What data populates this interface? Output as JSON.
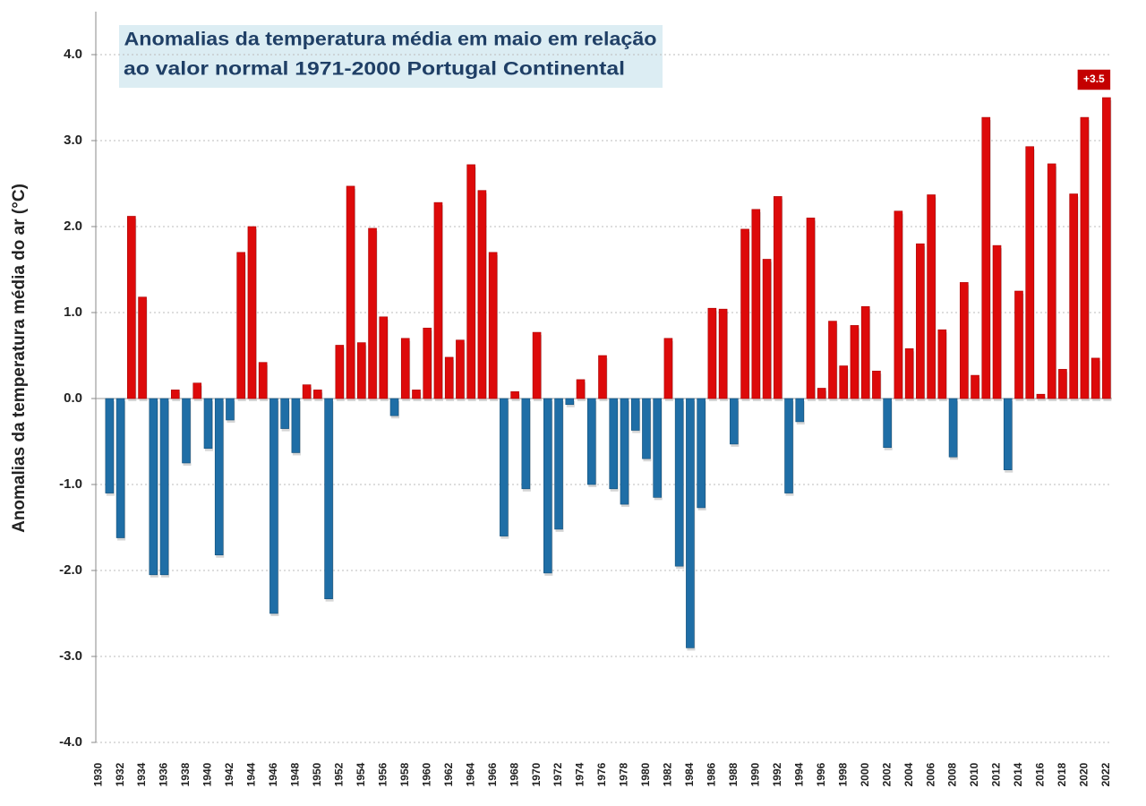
{
  "chart_data": {
    "type": "bar",
    "title": [
      "Anomalias da temperatura média em maio em relação",
      "ao valor normal 1971-2000 Portugal Continental"
    ],
    "y_label": "Anomalias da temperatura média do ar (°C)",
    "categories": [
      "1930",
      null,
      "1932",
      null,
      "1934",
      null,
      "1936",
      null,
      "1938",
      null,
      "1940",
      null,
      "1942",
      null,
      "1944",
      null,
      "1946",
      null,
      "1948",
      null,
      "1950",
      null,
      "1952",
      null,
      "1954",
      null,
      "1956",
      null,
      "1958",
      null,
      "1960",
      null,
      "1962",
      null,
      "1964",
      null,
      "1966",
      null,
      "1968",
      null,
      "1970",
      null,
      "1972",
      null,
      "1974",
      null,
      "1976",
      null,
      "1978",
      null,
      "1980",
      null,
      "1982",
      null,
      "1984",
      null,
      "1986",
      null,
      "1988",
      null,
      "1990",
      null,
      "1992",
      null,
      "1994",
      null,
      "1996",
      null,
      "1998",
      null,
      "2000",
      null,
      "2002",
      null,
      "2004",
      null,
      "2006",
      null,
      "2008",
      null,
      "2010",
      null,
      "2012",
      null,
      "2014",
      null,
      "2016",
      null,
      "2018",
      null,
      "2020",
      null,
      "2022"
    ],
    "values": [
      null,
      -1.1,
      -1.62,
      2.12,
      1.18,
      -2.05,
      -2.05,
      0.1,
      -0.75,
      0.18,
      -0.58,
      -1.82,
      -0.25,
      1.7,
      2.0,
      0.42,
      -2.5,
      -0.35,
      -0.63,
      0.16,
      0.1,
      -2.33,
      0.62,
      2.47,
      0.65,
      1.98,
      0.95,
      -0.2,
      0.7,
      0.1,
      0.82,
      2.28,
      0.48,
      0.68,
      2.72,
      2.42,
      1.7,
      -1.6,
      0.08,
      -1.05,
      0.77,
      -2.03,
      -1.52,
      -0.07,
      0.22,
      -1.0,
      0.5,
      -1.05,
      -1.23,
      -0.37,
      -0.7,
      -1.15,
      0.7,
      -1.95,
      -2.9,
      -1.27,
      1.05,
      1.04,
      -0.53,
      1.97,
      2.2,
      1.62,
      2.35,
      -1.1,
      -0.27,
      2.1,
      0.12,
      0.9,
      0.38,
      0.85,
      1.07,
      0.32,
      -0.57,
      2.18,
      0.58,
      1.8,
      2.37,
      0.8,
      -0.68,
      1.35,
      0.27,
      3.27,
      1.78,
      -0.83,
      1.25,
      2.93,
      0.05,
      2.73,
      0.34,
      2.38,
      3.27,
      0.47,
      3.5
    ],
    "positive_color": "#dd0a0a",
    "negative_color": "#1f6ea6",
    "annotation": "+3.5",
    "ylim": [
      -4,
      4.5
    ],
    "yticks": [
      {
        "value": -4,
        "label": "-4.0"
      },
      {
        "value": -3,
        "label": "-3.0"
      },
      {
        "value": -2,
        "label": "-2.0"
      },
      {
        "value": -1,
        "label": "-1.0"
      },
      {
        "value": 0,
        "label": "0.0"
      },
      {
        "value": 1,
        "label": "1.0"
      },
      {
        "value": 2,
        "label": "2.0"
      },
      {
        "value": 3,
        "label": "3.0"
      },
      {
        "value": 4,
        "label": "4.0"
      }
    ],
    "grid": true
  }
}
